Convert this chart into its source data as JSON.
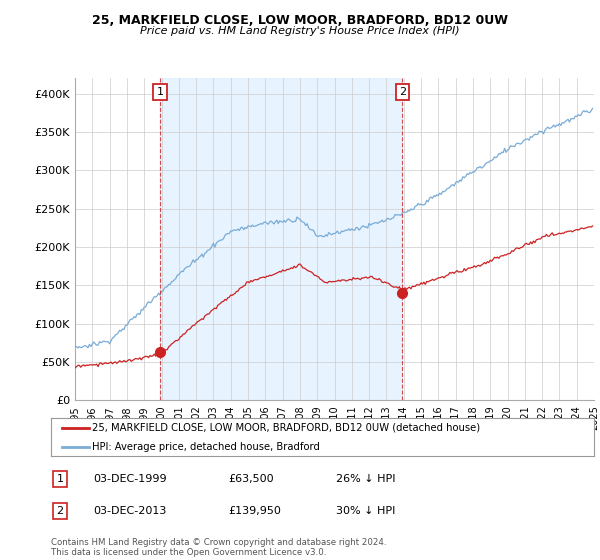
{
  "title": "25, MARKFIELD CLOSE, LOW MOOR, BRADFORD, BD12 0UW",
  "subtitle": "Price paid vs. HM Land Registry's House Price Index (HPI)",
  "ylim": [
    0,
    420000
  ],
  "yticks": [
    0,
    50000,
    100000,
    150000,
    200000,
    250000,
    300000,
    350000,
    400000
  ],
  "ytick_labels": [
    "£0",
    "£50K",
    "£100K",
    "£150K",
    "£200K",
    "£250K",
    "£300K",
    "£350K",
    "£400K"
  ],
  "sale1_x": 1999.917,
  "sale1_price": 63500,
  "sale2_x": 2013.917,
  "sale2_price": 139950,
  "hpi_color": "#7aacd6",
  "hpi_fill_color": "#ddeeff",
  "sale_color": "#cc2222",
  "vline_color": "#cc2222",
  "legend_label_sale": "25, MARKFIELD CLOSE, LOW MOOR, BRADFORD, BD12 0UW (detached house)",
  "legend_label_hpi": "HPI: Average price, detached house, Bradford",
  "table_row1": [
    "1",
    "03-DEC-1999",
    "£63,500",
    "26% ↓ HPI"
  ],
  "table_row2": [
    "2",
    "03-DEC-2013",
    "£139,950",
    "30% ↓ HPI"
  ],
  "footnote": "Contains HM Land Registry data © Crown copyright and database right 2024.\nThis data is licensed under the Open Government Licence v3.0.",
  "background_color": "#ffffff",
  "grid_color": "#cccccc",
  "box_label_color": "#cc2222"
}
